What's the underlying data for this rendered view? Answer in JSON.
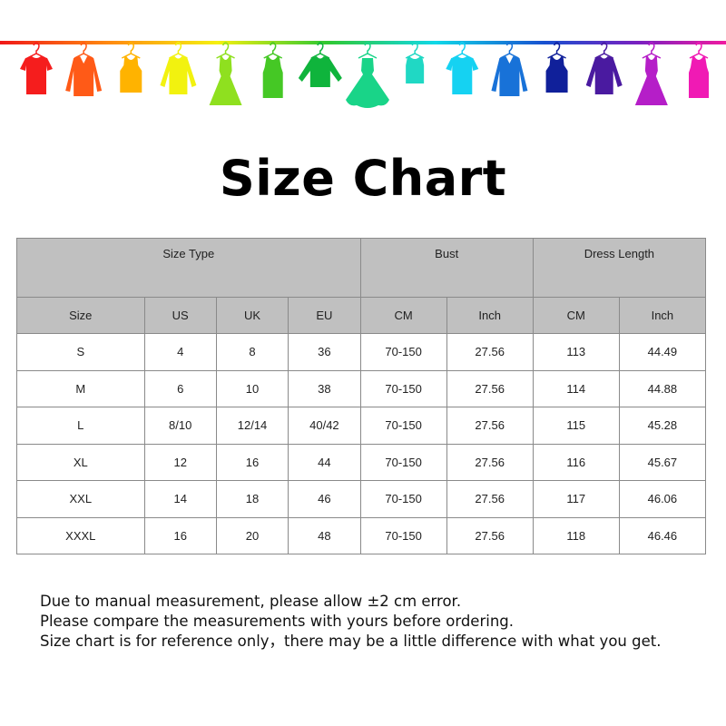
{
  "banner": {
    "garments": [
      {
        "icon": "tshirt-icon",
        "color": "#f51d1d"
      },
      {
        "icon": "shirt-icon",
        "color": "#ff5a17"
      },
      {
        "icon": "tank-top-icon",
        "color": "#ffb300"
      },
      {
        "icon": "sweater-icon",
        "color": "#f2f20f"
      },
      {
        "icon": "dress-icon",
        "color": "#8fe01f"
      },
      {
        "icon": "tank-dress-icon",
        "color": "#45c825"
      },
      {
        "icon": "long-sleeve-icon",
        "color": "#0fb43c"
      },
      {
        "icon": "ball-gown-icon",
        "color": "#19d488"
      },
      {
        "icon": "camisole-icon",
        "color": "#20d8c4"
      },
      {
        "icon": "tshirt-icon",
        "color": "#15d2f2"
      },
      {
        "icon": "shirt-icon",
        "color": "#1872d8"
      },
      {
        "icon": "tank-top-icon",
        "color": "#10209a"
      },
      {
        "icon": "sweater-icon",
        "color": "#4a1aa0"
      },
      {
        "icon": "dress-icon",
        "color": "#b51ec8"
      },
      {
        "icon": "tank-dress-icon",
        "color": "#f01ab4"
      }
    ]
  },
  "title": "Size Chart",
  "table": {
    "group_headers": [
      "Size Type",
      "Bust",
      "Dress Length"
    ],
    "columns": [
      "Size",
      "US",
      "UK",
      "EU",
      "CM",
      "Inch",
      "CM",
      "Inch"
    ],
    "rows": [
      [
        "S",
        "4",
        "8",
        "36",
        "70-150",
        "27.56",
        "113",
        "44.49"
      ],
      [
        "M",
        "6",
        "10",
        "38",
        "70-150",
        "27.56",
        "114",
        "44.88"
      ],
      [
        "L",
        "8/10",
        "12/14",
        "40/42",
        "70-150",
        "27.56",
        "115",
        "45.28"
      ],
      [
        "XL",
        "12",
        "16",
        "44",
        "70-150",
        "27.56",
        "116",
        "45.67"
      ],
      [
        "XXL",
        "14",
        "18",
        "46",
        "70-150",
        "27.56",
        "117",
        "46.06"
      ],
      [
        "XXXL",
        "16",
        "20",
        "48",
        "70-150",
        "27.56",
        "118",
        "46.46"
      ]
    ]
  },
  "notes": [
    "Due to manual measurement, please allow ±2 cm error.",
    "Please compare the measurements with yours before ordering.",
    "Size chart is for reference only，there may be a little difference with what you get."
  ]
}
